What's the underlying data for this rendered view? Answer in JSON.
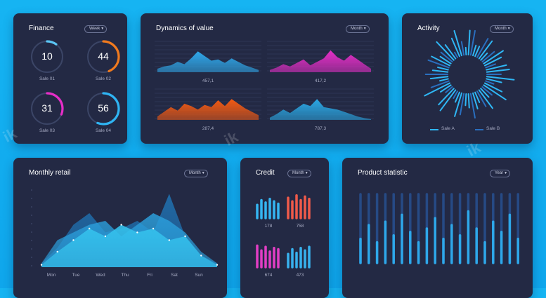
{
  "finance": {
    "title": "Finance",
    "period": "Week",
    "gauges": [
      {
        "value": "10",
        "label": "Sale 01",
        "fraction": 0.1,
        "color": "#5bc6f5"
      },
      {
        "value": "44",
        "label": "Sale 02",
        "fraction": 0.44,
        "color": "#f07a1e"
      },
      {
        "value": "31",
        "label": "Sale 03",
        "fraction": 0.31,
        "color": "#e62ec8"
      },
      {
        "value": "56",
        "label": "Sale 04",
        "fraction": 0.56,
        "color": "#2fb4f3"
      }
    ]
  },
  "dynamics": {
    "title": "Dynamics of value",
    "period": "Month",
    "panels": [
      {
        "value": "457,1",
        "color": "#2fa8ea"
      },
      {
        "value": "417,2",
        "color": "#e62ec8"
      },
      {
        "value": "287,4",
        "color": "#f35a12"
      },
      {
        "value": "787,3",
        "color": "#2aa8e4"
      }
    ]
  },
  "activity": {
    "title": "Activity",
    "period": "Month",
    "legend": [
      "Sale A",
      "Sale B"
    ],
    "colors": {
      "a": "#2fb7f5",
      "b": "#2a6fbf"
    }
  },
  "monthly": {
    "title": "Monthly retail",
    "period": "Month",
    "days": [
      "Mon",
      "Tue",
      "Wed",
      "Thu",
      "Fri",
      "Sat",
      "Sun"
    ]
  },
  "credit": {
    "title": "Credit",
    "period": "Month",
    "groups": [
      {
        "value": "178",
        "color": "#35b6f2",
        "heights": [
          0.55,
          0.75,
          0.65,
          0.8,
          0.7,
          0.6
        ]
      },
      {
        "value": "758",
        "color": "#f05a4a",
        "heights": [
          0.85,
          0.7,
          0.95,
          0.75,
          0.9,
          0.8
        ]
      },
      {
        "value": "674",
        "color": "#e23ec4",
        "heights": [
          0.9,
          0.7,
          0.85,
          0.65,
          0.8,
          0.75
        ]
      },
      {
        "value": "473",
        "color": "#38b2ef",
        "heights": [
          0.55,
          0.75,
          0.6,
          0.8,
          0.7,
          0.85
        ]
      }
    ]
  },
  "product": {
    "title": "Product statistic",
    "period": "Year",
    "bars": [
      0.35,
      0.55,
      0.3,
      0.6,
      0.4,
      0.7,
      0.45,
      0.3,
      0.5,
      0.65,
      0.35,
      0.55,
      0.4,
      0.75,
      0.5,
      0.3,
      0.6,
      0.45,
      0.7,
      0.35
    ]
  }
}
